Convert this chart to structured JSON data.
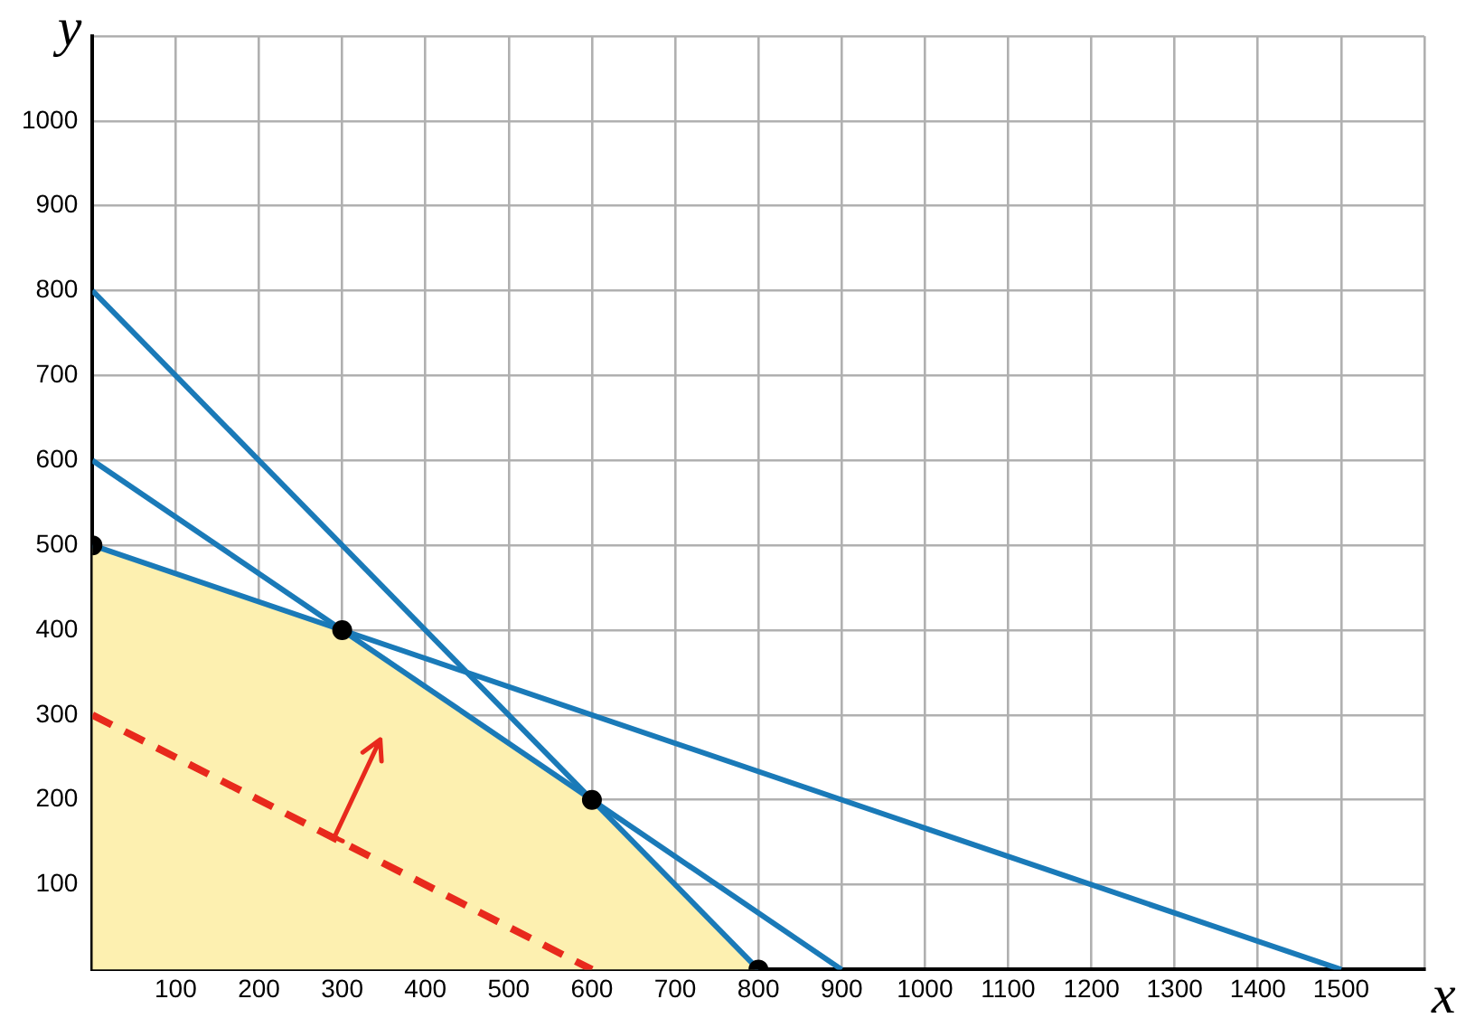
{
  "chart_data": {
    "type": "line",
    "xlabel": "x",
    "ylabel": "y",
    "xlim": [
      0,
      1600
    ],
    "ylim": [
      0,
      1100
    ],
    "xticks": [
      100,
      200,
      300,
      400,
      500,
      600,
      700,
      800,
      900,
      1000,
      1100,
      1200,
      1300,
      1400,
      1500,
      {
        "value": 1600,
        "label": null
      }
    ],
    "yticks": [
      100,
      200,
      300,
      400,
      500,
      600,
      700,
      800,
      900,
      1000,
      {
        "value": 1100,
        "label": null
      }
    ],
    "grid": true,
    "legend": false,
    "series": [
      {
        "type": "area",
        "color": "#fdf0b0",
        "x": [
          0,
          0,
          300,
          600,
          800
        ],
        "values": [
          0,
          500,
          400,
          200,
          0
        ]
      },
      {
        "type": "line",
        "color": "#1a7ab8",
        "x": [
          0,
          800
        ],
        "values": [
          800,
          0
        ]
      },
      {
        "type": "line",
        "color": "#1a7ab8",
        "x": [
          0,
          900
        ],
        "values": [
          600,
          0
        ]
      },
      {
        "type": "line",
        "color": "#1a7ab8",
        "x": [
          0,
          1500
        ],
        "values": [
          500,
          0
        ]
      },
      {
        "type": "line",
        "color": "#e8291c",
        "line_style": "dashed",
        "x": [
          0,
          600
        ],
        "values": [
          300,
          0
        ]
      },
      {
        "type": "scatter",
        "color": "#000000",
        "marker": "circle",
        "x": [
          0,
          300,
          600,
          800
        ],
        "values": [
          500,
          400,
          200,
          0
        ]
      }
    ]
  }
}
